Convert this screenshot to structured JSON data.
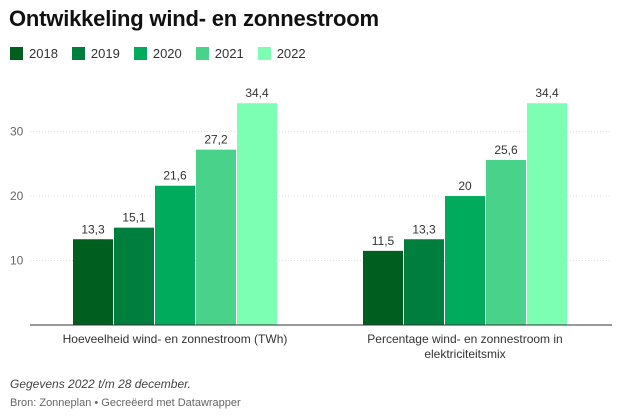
{
  "title": "Ontwikkeling wind- en zonnestroom",
  "legend": [
    {
      "label": "2018",
      "color": "#005e1f"
    },
    {
      "label": "2019",
      "color": "#007e3e"
    },
    {
      "label": "2020",
      "color": "#00ac5c"
    },
    {
      "label": "2021",
      "color": "#48d28a"
    },
    {
      "label": "2022",
      "color": "#7dffb3"
    }
  ],
  "chart_data": {
    "type": "bar",
    "title": "Ontwikkeling wind- en zonnestroom",
    "xlabel": "",
    "ylabel": "",
    "categories": [
      "Hoeveelheid wind- en zonnestroom (TWh)",
      "Percentage wind- en zonnestroom in elektriciteitsmix"
    ],
    "category_lines": [
      [
        "Hoeveelheid wind- en zonnestroom (TWh)"
      ],
      [
        "Percentage wind- en zonnestroom in",
        "elektriciteitsmix"
      ]
    ],
    "series": [
      {
        "name": "2018",
        "color": "#005e1f",
        "values": [
          13.3,
          11.5
        ],
        "labels": [
          "13,3",
          "11,5"
        ]
      },
      {
        "name": "2019",
        "color": "#007e3e",
        "values": [
          15.1,
          13.3
        ],
        "labels": [
          "15,1",
          "13,3"
        ]
      },
      {
        "name": "2020",
        "color": "#00ac5c",
        "values": [
          21.6,
          20
        ],
        "labels": [
          "21,6",
          "20"
        ]
      },
      {
        "name": "2021",
        "color": "#48d28a",
        "values": [
          27.2,
          25.6
        ],
        "labels": [
          "27,2",
          "25,6"
        ]
      },
      {
        "name": "2022",
        "color": "#7dffb3",
        "values": [
          34.4,
          34.4
        ],
        "labels": [
          "34,4",
          "34,4"
        ]
      }
    ],
    "ylim": [
      0,
      38
    ],
    "yticks": [
      10,
      20,
      30
    ],
    "ytick_labels": [
      "10",
      "20",
      "30"
    ],
    "grid": true,
    "legend_position": "top-left"
  },
  "footer": {
    "note": "Gegevens 2022 t/m 28 december.",
    "source": "Bron: Zonneplan • Gecreëerd met Datawrapper"
  }
}
